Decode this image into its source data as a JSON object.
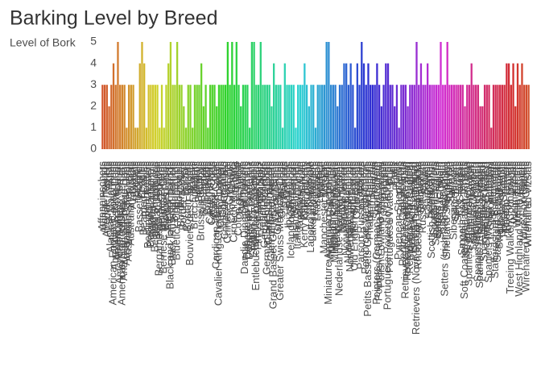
{
  "chart_data": {
    "type": "bar",
    "title": "Barking Level by Breed",
    "y_label": "Level of Bork",
    "categories": [
      "Affenpinschers",
      "Afghan Hounds",
      "Airedale Terriers",
      "Akitas",
      "Alaskan Malamutes",
      "American English Coonhounds",
      "American Eskimo Dogs",
      "American Foxhounds",
      "American Hairless Terriers",
      "American Staffordshire Terriers",
      "Anatolian Shepherd Dogs",
      "Australian Cattle Dogs",
      "Australian Shepherds",
      "Australian Terriers",
      "Azawakhs",
      "Barbets",
      "Basenjis",
      "Basset Hounds",
      "Beagles",
      "Bearded Collies",
      "Beaucerons",
      "Bedlington Terriers",
      "Belgian Laekenois",
      "Belgian Malinois",
      "Belgian Sheepdogs",
      "Belgian Tervuren",
      "Bergamasco Sheepdogs",
      "Berger Picards",
      "Bernese Mountain Dogs",
      "Bichons Frises",
      "Biewer Terriers",
      "Black and Tan Coonhounds",
      "Black Russian Terriers",
      "Bloodhounds",
      "Bluetick Coonhounds",
      "Boerboels",
      "Border Collies",
      "Border Terriers",
      "Borzois",
      "Boston Terriers",
      "Bouviers des Flandres",
      "Boxers",
      "Bracchi Italiani",
      "Briards",
      "Brittanys",
      "Brussels Griffons",
      "Bull Terriers",
      "Bulldogs",
      "Bullmastiffs",
      "Cairn Terriers",
      "Canaan Dogs",
      "Cane Corso",
      "Cardigan Welsh Corgis",
      "Cavalier King Charles Spaniels",
      "Cesky Terriers",
      "Chihuahuas",
      "Chinese Crested",
      "Chinese Shar-Pei",
      "Chinooks",
      "Chow Chows",
      "Cirnechi dell'Etna",
      "Collies",
      "Coton de Tulear",
      "Dachshunds",
      "Dalmatians",
      "Dandie Dinmont Terriers",
      "Doberman Pinschers",
      "Dogues de Bordeaux",
      "English Foxhounds",
      "English Toy Spaniels",
      "Entlebucher Mountain Dogs",
      "Finnish Lapphunds",
      "Finnish Spitz",
      "French Bulldogs",
      "German Pinschers",
      "German Shepherd Dogs",
      "Giant Schnauzers",
      "Glen of Imaal Terriers",
      "Grand Basset Griffon Vendeens",
      "Great Danes",
      "Great Pyrenees",
      "Greater Swiss Mountain Dogs",
      "Greyhounds",
      "Harriers",
      "Havanese",
      "Ibizan Hounds",
      "Icelandic Sheepdogs",
      "Irish Terriers",
      "Irish Wolfhounds",
      "Italian Greyhounds",
      "Japanese Chin",
      "Keeshonden",
      "Kerry Blue Terriers",
      "Komondorok",
      "Kuvaszok",
      "Lagotto Romagnolo",
      "Lakeland Terriers",
      "Leonbergers",
      "Lhasa Apsos",
      "Lowchen",
      "Maltese",
      "Manchester Terriers",
      "Mastiffs",
      "Miniature American Shepherds",
      "Miniature Bull Terriers",
      "Miniature Pinschers",
      "Miniature Schnauzers",
      "Neapolitan Mastiffs",
      "Nederlandse Kooikerhondjes",
      "Newfoundlands",
      "Norfolk Terriers",
      "Norwegian Buhunds",
      "Norwegian Elkhounds",
      "Norwegian Lundehunds",
      "Norwich Terriers",
      "Old English Sheepdogs",
      "Otterhounds",
      "Papillons",
      "Parson Russell Terriers",
      "Pekingese",
      "Pembroke Welsh Corgis",
      "Petits Bassets Griffons Vendeens",
      "Pharaoh Hounds",
      "Plott Hounds",
      "Pointers",
      "Pointers (German Shorthaired)",
      "Pointers (German Wirehaired)",
      "Polish Lowland Sheepdogs",
      "Pomeranians",
      "Poodles",
      "Portuguese Podengo Pequenos",
      "Portuguese Water Dogs",
      "Pugs",
      "Pulik",
      "Pumik",
      "Pyrenean Shepherds",
      "Rat Terriers",
      "Redbone Coonhounds",
      "Retrievers (Chesapeake Bay)",
      "Retrievers (Curly-Coated)",
      "Retrievers (Flat-Coated)",
      "Retrievers (Golden)",
      "Retrievers (Labrador)",
      "Retrievers (Nova Scotia Duck Tolling)",
      "Rhodesian Ridgebacks",
      "Rottweilers",
      "Russell Terriers",
      "Salukis",
      "Samoyeds",
      "Schipperkes",
      "Scottish Deerhounds",
      "Scottish Terriers",
      "Sealyham Terriers",
      "Setters (English)",
      "Setters (Gordon)",
      "Setters (Irish)",
      "Setters (Irish Red and White)",
      "Shetland Sheepdogs",
      "Shiba Inu",
      "Shih Tzu",
      "Siberian Huskies",
      "Silky Terriers",
      "Skye Terriers",
      "Sloughis",
      "Smooth Fox Terriers",
      "Soft Coated Wheaten Terriers",
      "Spanish Water Dogs",
      "Spaniels (American Water)",
      "Spaniels (Boykin)",
      "Spaniels (Clumber)",
      "Spaniels (Cocker)",
      "Spaniels (English Cocker)",
      "Spaniels (English Springer)",
      "Spaniels (Field)",
      "Spaniels (Irish Water)",
      "Spaniels (Sussex)",
      "Spaniels (Welsh Springer)",
      "Spinoni Italiani",
      "St. Bernards",
      "Staffordshire Bull Terriers",
      "Standard Schnauzers",
      "Swedish Vallhunds",
      "Tibetan Mastiffs",
      "Tibetan Spaniels",
      "Tibetan Terriers",
      "Toy Fox Terriers",
      "Treeing Walker Coonhounds",
      "Vizslas",
      "Weimaraners",
      "Welsh Terriers",
      "West Highland White Terriers",
      "Whippets",
      "Wire Fox Terriers",
      "Wirehaired Pointing Griffons",
      "Wirehaired Vizslas"
    ],
    "values": [
      3,
      3,
      3,
      2,
      3,
      4,
      3,
      5,
      3,
      3,
      3,
      1,
      3,
      3,
      3,
      1,
      1,
      4,
      5,
      4,
      1,
      3,
      3,
      3,
      3,
      3,
      1,
      3,
      1,
      3,
      4,
      5,
      3,
      3,
      5,
      3,
      3,
      2,
      1,
      3,
      3,
      1,
      3,
      3,
      3,
      4,
      2,
      3,
      1,
      3,
      3,
      3,
      2,
      3,
      3,
      3,
      3,
      5,
      3,
      5,
      3,
      5,
      3,
      2,
      3,
      3,
      3,
      1,
      5,
      5,
      3,
      3,
      5,
      3,
      3,
      3,
      3,
      2,
      4,
      3,
      3,
      3,
      1,
      4,
      3,
      3,
      3,
      3,
      1,
      3,
      3,
      3,
      4,
      3,
      2,
      3,
      3,
      1,
      3,
      3,
      3,
      3,
      5,
      5,
      3,
      3,
      3,
      2,
      3,
      3,
      4,
      4,
      3,
      4,
      3,
      1,
      4,
      3,
      5,
      4,
      3,
      4,
      3,
      3,
      3,
      4,
      3,
      2,
      3,
      4,
      4,
      3,
      3,
      2,
      3,
      1,
      3,
      3,
      3,
      2,
      3,
      3,
      3,
      5,
      3,
      4,
      3,
      3,
      4,
      3,
      3,
      3,
      3,
      3,
      5,
      3,
      3,
      5,
      3,
      3,
      3,
      3,
      3,
      3,
      3,
      2,
      3,
      3,
      4,
      3,
      3,
      3,
      2,
      2,
      3,
      3,
      3,
      1,
      3,
      3,
      3,
      3,
      3,
      3,
      4,
      4,
      3,
      4,
      2,
      4,
      3,
      4,
      3,
      3,
      3
    ],
    "ylim": [
      0,
      5
    ],
    "yticks": [
      0,
      1,
      2,
      3,
      4,
      5
    ],
    "grid": false
  }
}
